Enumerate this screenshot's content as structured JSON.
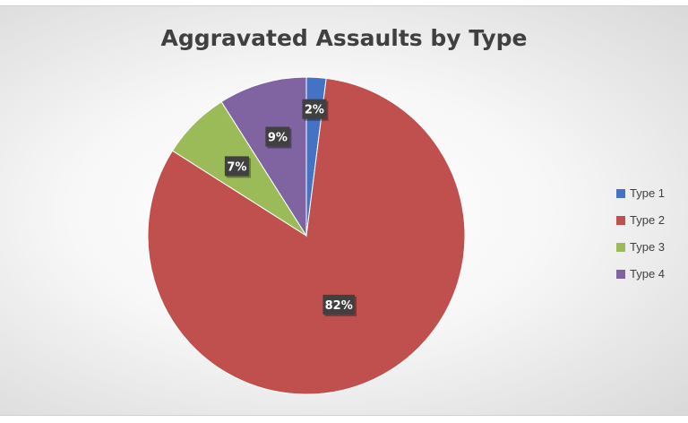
{
  "chart_data": {
    "type": "pie",
    "title": "Aggravated Assaults by Type",
    "categories": [
      "Type 1",
      "Type 2",
      "Type 3",
      "Type 4"
    ],
    "values": [
      2,
      82,
      7,
      9
    ],
    "data_labels": [
      "2%",
      "82%",
      "7%",
      "9%"
    ],
    "colors": [
      "#4472c4",
      "#c0504d",
      "#9bbb59",
      "#8064a2"
    ],
    "legend_position": "right",
    "start_angle_deg": 0,
    "direction": "clockwise"
  }
}
